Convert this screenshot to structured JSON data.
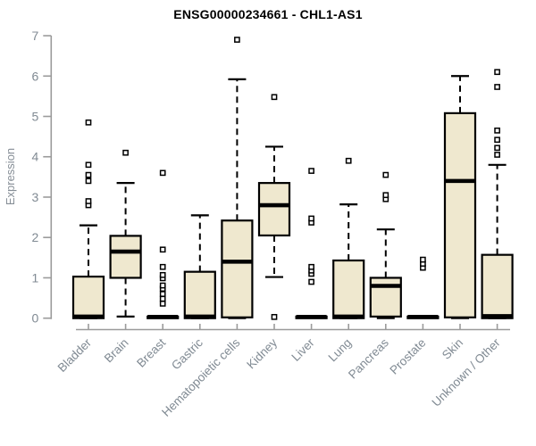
{
  "chart": {
    "title": "ENSG00000234661 - CHL1-AS1",
    "ylabel": "Expression"
  },
  "chart_data": {
    "type": "boxplot",
    "title": "ENSG00000234661 - CHL1-AS1",
    "xlabel": "",
    "ylabel": "Expression",
    "ylim": [
      0,
      7
    ],
    "yticks": [
      0,
      1,
      2,
      3,
      4,
      5,
      6,
      7
    ],
    "grid": false,
    "legend": false,
    "box_fill_color": "#efe8cf",
    "box_border_color": "#000000",
    "axis_color": "#9b9b9b",
    "label_color": "#808a93",
    "categories": [
      "Bladder",
      "Brain",
      "Breast",
      "Gastric",
      "Hematopoietic cells",
      "Kidney",
      "Liver",
      "Lung",
      "Pancreas",
      "Prostate",
      "Skin",
      "Unknown / Other"
    ],
    "series": [
      {
        "name": "Bladder",
        "q1": 0,
        "median": 0.04,
        "q3": 1.03,
        "whisker_low": 0,
        "whisker_high": 2.3,
        "collapsed": false,
        "outliers": [
          2.8,
          2.9,
          3.4,
          3.55,
          3.8,
          4.85
        ]
      },
      {
        "name": "Brain",
        "q1": 1.0,
        "median": 1.65,
        "q3": 2.04,
        "whisker_low": 0.04,
        "whisker_high": 3.35,
        "collapsed": false,
        "outliers": [
          4.1
        ]
      },
      {
        "name": "Breast",
        "q1": 0,
        "median": 0.03,
        "q3": 0.04,
        "whisker_low": 0,
        "whisker_high": 0.04,
        "collapsed": true,
        "outliers": [
          0.36,
          0.48,
          0.6,
          0.73,
          0.81,
          0.99,
          1.07,
          1.27,
          1.7,
          3.6
        ]
      },
      {
        "name": "Gastric",
        "q1": 0,
        "median": 0.04,
        "q3": 1.15,
        "whisker_low": 0,
        "whisker_high": 2.55,
        "collapsed": false,
        "outliers": []
      },
      {
        "name": "Hematopoietic cells",
        "q1": 0.02,
        "median": 1.4,
        "q3": 2.42,
        "whisker_low": 0,
        "whisker_high": 5.92,
        "collapsed": false,
        "outliers": [
          6.9
        ]
      },
      {
        "name": "Kidney",
        "q1": 2.05,
        "median": 2.8,
        "q3": 3.35,
        "whisker_low": 1.02,
        "whisker_high": 4.25,
        "collapsed": false,
        "outliers": [
          0.03,
          5.48
        ]
      },
      {
        "name": "Liver",
        "q1": 0,
        "median": 0.03,
        "q3": 0.04,
        "whisker_low": 0,
        "whisker_high": 0.04,
        "collapsed": true,
        "outliers": [
          0.9,
          1.1,
          1.18,
          1.27,
          2.37,
          2.47,
          3.65
        ]
      },
      {
        "name": "Lung",
        "q1": 0,
        "median": 0.04,
        "q3": 1.43,
        "whisker_low": 0,
        "whisker_high": 2.82,
        "collapsed": false,
        "outliers": [
          3.9
        ]
      },
      {
        "name": "Pancreas",
        "q1": 0.04,
        "median": 0.8,
        "q3": 1.0,
        "whisker_low": 0,
        "whisker_high": 2.2,
        "collapsed": false,
        "outliers": [
          2.95,
          3.05,
          3.55
        ]
      },
      {
        "name": "Prostate",
        "q1": 0,
        "median": 0.03,
        "q3": 0.04,
        "whisker_low": 0,
        "whisker_high": 0.04,
        "collapsed": true,
        "outliers": [
          1.25,
          1.35,
          1.45
        ]
      },
      {
        "name": "Skin",
        "q1": 0.02,
        "median": 3.4,
        "q3": 5.08,
        "whisker_low": 0,
        "whisker_high": 6.0,
        "collapsed": false,
        "outliers": []
      },
      {
        "name": "Unknown / Other",
        "q1": 0,
        "median": 0.05,
        "q3": 1.57,
        "whisker_low": 0,
        "whisker_high": 3.8,
        "collapsed": false,
        "outliers": [
          4.05,
          4.22,
          4.42,
          4.65,
          5.73,
          6.1
        ]
      }
    ]
  }
}
